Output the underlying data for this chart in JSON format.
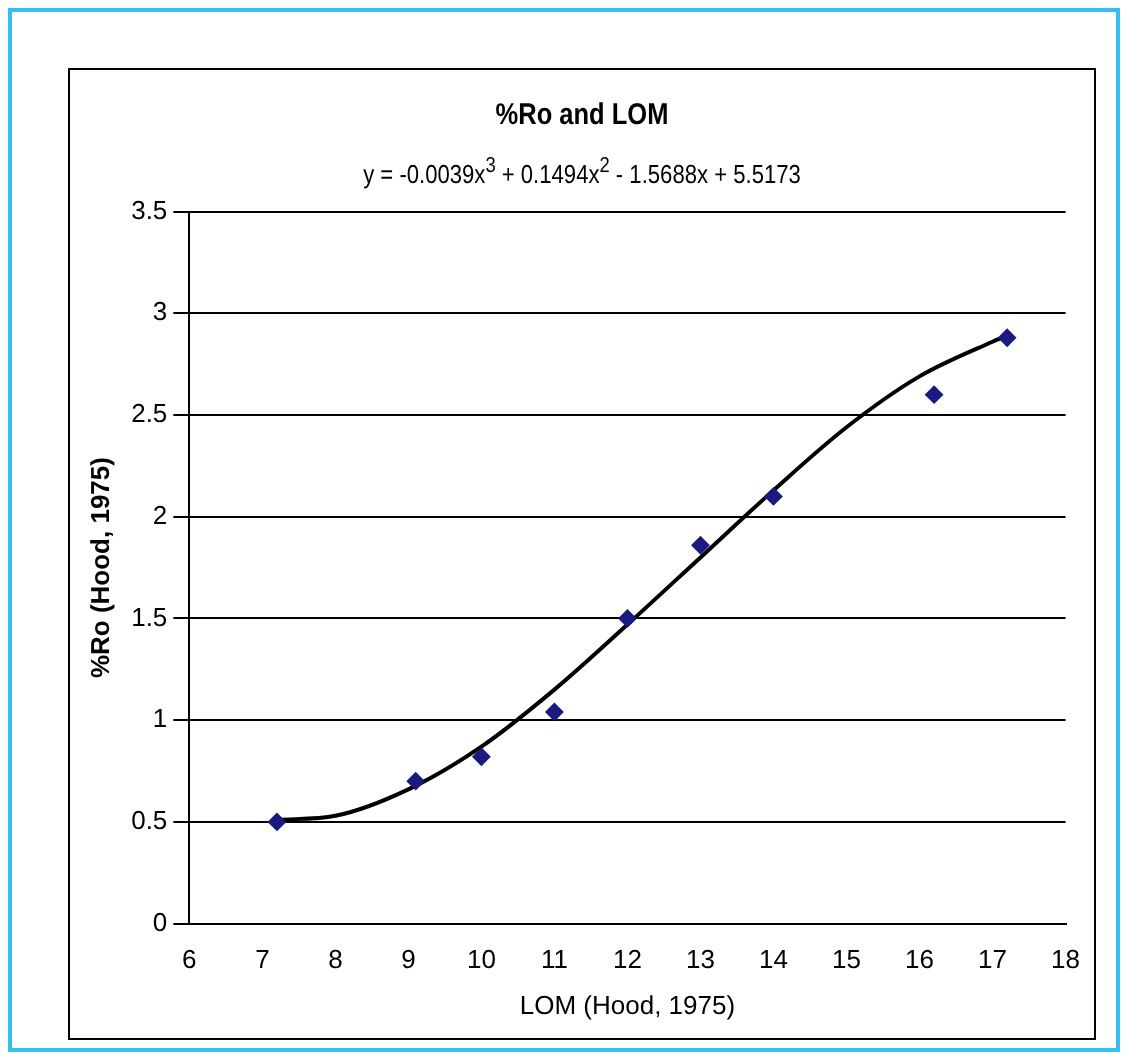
{
  "chart_data": {
    "type": "scatter",
    "title": "%Ro and LOM",
    "annotations": [
      "y = -0.0039x$^{3}$ + 0.1494x$^{2}$ - 1.5688x + 5.5173"
    ],
    "xlabel": "LOM (Hood, 1975)",
    "ylabel": "%Ro (Hood, 1975)",
    "x": [
      7.2,
      9.1,
      10,
      11,
      12,
      13,
      14,
      16.2,
      17.2
    ],
    "series": [
      {
        "type": "scatter",
        "color": "#1a1a80",
        "values": [
          0.5,
          0.7,
          0.82,
          1.04,
          1.5,
          1.86,
          2.1,
          2.6,
          2.88
        ]
      },
      {
        "type": "line",
        "color": "#000000",
        "marker": "none",
        "x": [
          7.2,
          8,
          9,
          10,
          11,
          12,
          13,
          14,
          15,
          16,
          17,
          17.2
        ],
        "values": [
          0.51,
          0.53,
          0.66,
          0.87,
          1.15,
          1.47,
          1.8,
          2.13,
          2.44,
          2.69,
          2.86,
          2.89
        ]
      }
    ],
    "xlim": [
      6,
      18
    ],
    "xticks": [
      6,
      7,
      8,
      9,
      10,
      11,
      12,
      13,
      14,
      15,
      16,
      17,
      18
    ],
    "ylim": [
      0,
      3.5
    ],
    "yticks": [
      0,
      0.5,
      1,
      1.5,
      2,
      2.5,
      3,
      3.5
    ],
    "grid": "y",
    "marker": "diamond",
    "legend": false
  }
}
